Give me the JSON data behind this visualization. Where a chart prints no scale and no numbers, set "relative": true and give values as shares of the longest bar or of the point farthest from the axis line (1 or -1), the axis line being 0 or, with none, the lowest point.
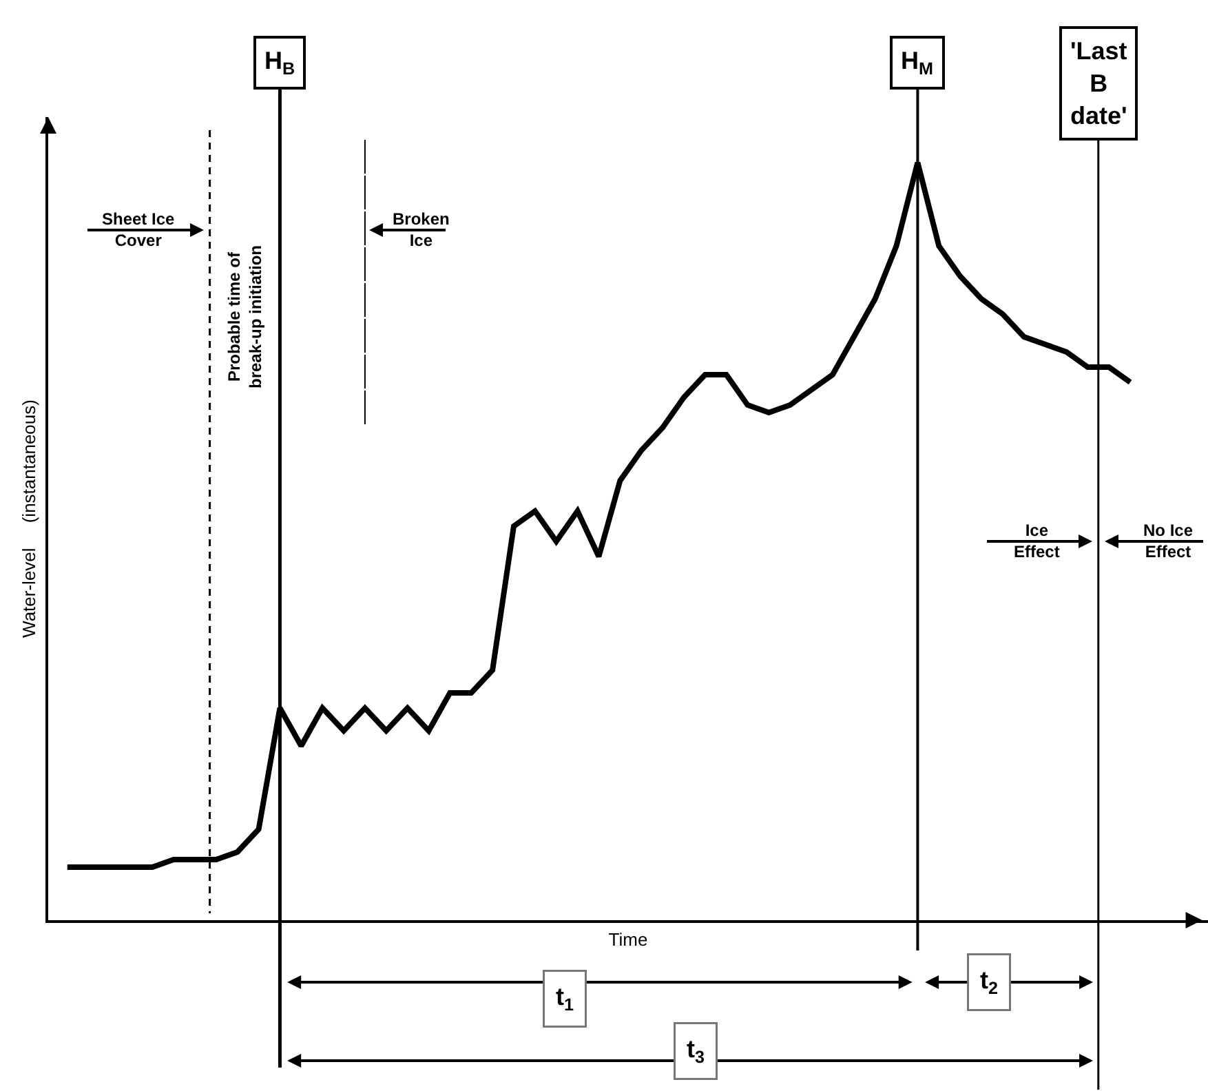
{
  "chart_data": {
    "type": "line",
    "relative": true,
    "xlabel": "Time",
    "ylabel": "Water-level     (instantaneous)",
    "categories": [
      null,
      null,
      null,
      null,
      null,
      null,
      null,
      null,
      null,
      null,
      null,
      null,
      null,
      null,
      null,
      null,
      null,
      null,
      null,
      null,
      null,
      null,
      null,
      null,
      null,
      null,
      null,
      null,
      null,
      null,
      null,
      null,
      null,
      null,
      null,
      null,
      null,
      null,
      null,
      null,
      null,
      null,
      null,
      null,
      null,
      null,
      null,
      null,
      null,
      null,
      null
    ],
    "series": [
      {
        "color": "#000000",
        "values": [
          0.07,
          0.07,
          0.07,
          0.07,
          0.07,
          0.08,
          0.08,
          0.08,
          0.09,
          0.12,
          0.28,
          0.23,
          0.28,
          0.25,
          0.28,
          0.25,
          0.28,
          0.25,
          0.3,
          0.3,
          0.33,
          0.52,
          0.54,
          0.5,
          0.54,
          0.48,
          0.58,
          0.62,
          0.65,
          0.69,
          0.72,
          0.72,
          0.68,
          0.67,
          0.68,
          0.7,
          0.72,
          0.77,
          0.82,
          0.89,
          1,
          0.89,
          0.85,
          0.82,
          0.8,
          0.77,
          0.76,
          0.75,
          0.73,
          0.73,
          0.71
        ]
      }
    ],
    "annotations": [
      "Sheet Ice\nCover",
      "Broken\nIce",
      "Probable time of\nbreak-up initiation",
      "Ice\nEffect",
      "No Ice\nEffect",
      "t$_{1}$",
      "t$_{2}$",
      "t$_{3}$",
      "H$_{B}$",
      "H$_{M}$",
      "'Last\nB\ndate'"
    ],
    "marker": "none",
    "line_style": "solid"
  }
}
